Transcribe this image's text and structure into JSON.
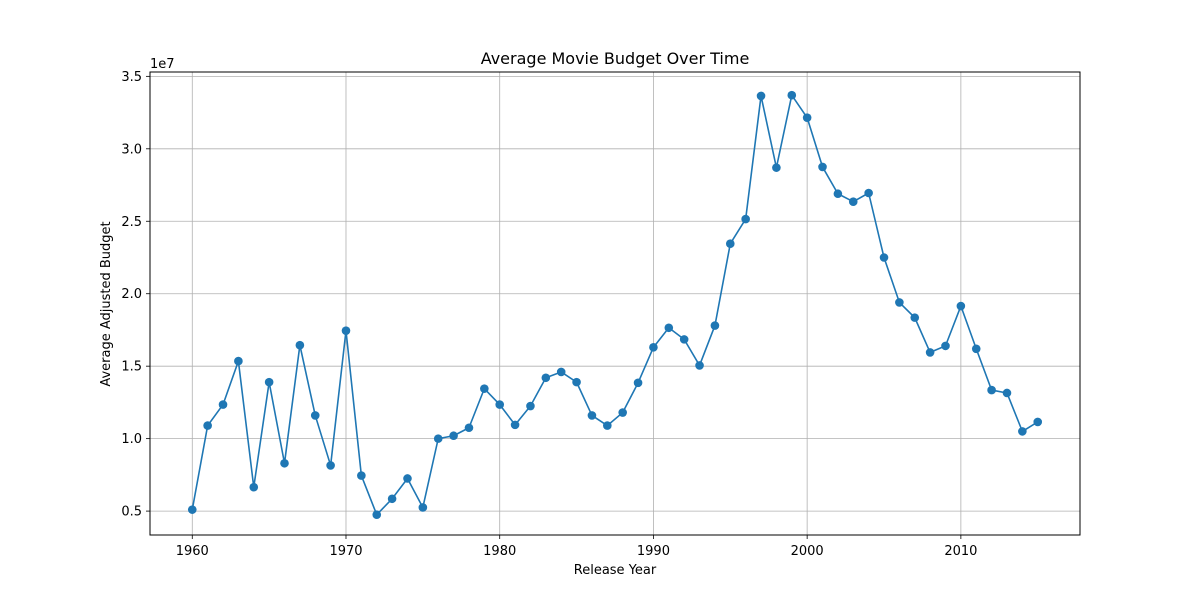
{
  "chart_data": {
    "type": "line",
    "title": "Average Movie Budget Over Time",
    "xlabel": "Release Year",
    "ylabel": "Average Adjusted Budget",
    "y_offset_label": "1e7",
    "xlim": [
      1957.25,
      2017.75
    ],
    "ylim": [
      3350000,
      35300000
    ],
    "x_ticks": [
      1960,
      1970,
      1980,
      1990,
      2000,
      2010
    ],
    "x_tick_labels": [
      "1960",
      "1970",
      "1980",
      "1990",
      "2000",
      "2010"
    ],
    "y_ticks": [
      5000000,
      10000000,
      15000000,
      20000000,
      25000000,
      30000000,
      35000000
    ],
    "y_tick_labels": [
      "0.5",
      "1.0",
      "1.5",
      "2.0",
      "2.5",
      "3.0",
      "3.5"
    ],
    "grid": true,
    "line_color": "#1f77b4",
    "marker": "circle",
    "series": [
      {
        "x": [
          1960,
          1961,
          1962,
          1963,
          1964,
          1965,
          1966,
          1967,
          1968,
          1969,
          1970,
          1971,
          1972,
          1973,
          1974,
          1975,
          1976,
          1977,
          1978,
          1979,
          1980,
          1981,
          1982,
          1983,
          1984,
          1985,
          1986,
          1987,
          1988,
          1989,
          1990,
          1991,
          1992,
          1993,
          1994,
          1995,
          1996,
          1997,
          1998,
          1999,
          2000,
          2001,
          2002,
          2003,
          2004,
          2005,
          2006,
          2007,
          2008,
          2009,
          2010,
          2011,
          2012,
          2013,
          2014,
          2015
        ],
        "y": [
          5100000,
          10900000,
          12350000,
          15350000,
          6650000,
          13900000,
          8300000,
          16450000,
          11600000,
          8150000,
          17450000,
          7450000,
          4750000,
          5850000,
          7250000,
          5250000,
          10000000,
          10200000,
          10750000,
          13450000,
          12350000,
          10950000,
          12250000,
          14200000,
          14600000,
          13900000,
          11600000,
          10900000,
          11800000,
          13850000,
          16300000,
          17650000,
          16850000,
          15050000,
          17800000,
          23450000,
          25150000,
          33650000,
          28700000,
          33700000,
          32150000,
          28750000,
          26900000,
          26350000,
          26950000,
          22500000,
          19400000,
          18350000,
          15950000,
          16400000,
          19150000,
          16200000,
          13350000,
          13150000,
          10500000,
          11150000
        ]
      }
    ]
  }
}
